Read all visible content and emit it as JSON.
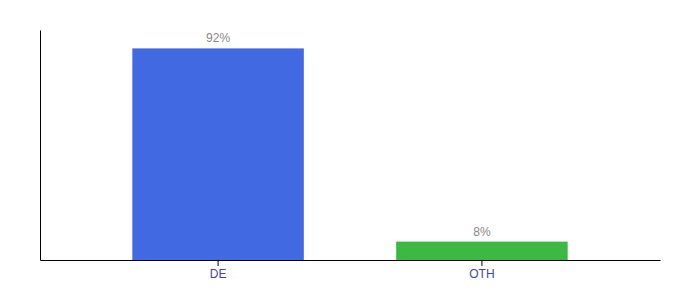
{
  "chart_data": {
    "type": "bar",
    "categories": [
      "DE",
      "OTH"
    ],
    "values": [
      92,
      8
    ],
    "value_labels": [
      "92%",
      "8%"
    ],
    "colors": [
      "#4169e1",
      "#3cb843"
    ],
    "ylim": [
      0,
      100
    ],
    "data_labels": true,
    "tick_labels": "x"
  }
}
